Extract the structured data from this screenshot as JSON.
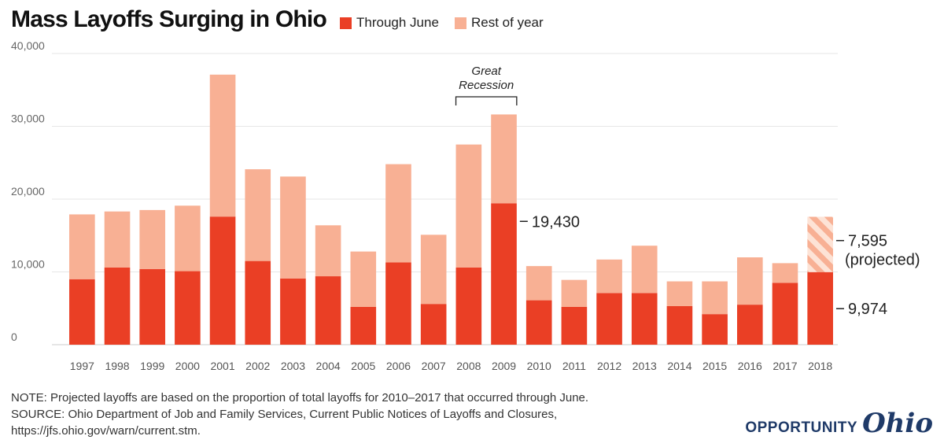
{
  "chart_data": {
    "type": "bar",
    "stacked": true,
    "title": "Mass Layoffs Surging in Ohio",
    "categories": [
      "1997",
      "1998",
      "1999",
      "2000",
      "2001",
      "2002",
      "2003",
      "2004",
      "2005",
      "2006",
      "2007",
      "2008",
      "2009",
      "2010",
      "2011",
      "2012",
      "2013",
      "2014",
      "2015",
      "2016",
      "2017",
      "2018"
    ],
    "series": [
      {
        "name": "Through June",
        "color": "#ea3f25",
        "values": [
          9000,
          10600,
          10400,
          10100,
          17600,
          11500,
          9100,
          9400,
          5200,
          11300,
          5600,
          10600,
          19430,
          6100,
          5200,
          7100,
          7100,
          5300,
          4200,
          5500,
          8500,
          9974
        ]
      },
      {
        "name": "Rest of year",
        "color": "#f8b094",
        "values": [
          8900,
          7700,
          8100,
          9000,
          19500,
          12600,
          14000,
          7000,
          7600,
          13500,
          9500,
          16900,
          12200,
          4700,
          3700,
          4600,
          6500,
          3400,
          4500,
          6500,
          2700,
          7595
        ]
      }
    ],
    "projected": {
      "category": "2018",
      "series": "Rest of year",
      "pattern": "diagonal-stripes"
    },
    "ylim": [
      0,
      40000
    ],
    "yticks": [
      0,
      10000,
      20000,
      30000,
      40000
    ],
    "ytick_labels": [
      "0",
      "10,000",
      "20,000",
      "30,000",
      "40,000"
    ],
    "grid": true,
    "legend_position": "top",
    "annotations": {
      "recession_label_line1": "Great",
      "recession_label_line2": "Recession",
      "recession_span": [
        "2008",
        "2009"
      ],
      "value_2009": "19,430",
      "value_2018_projected": "7,595",
      "value_2018_projected_note": "(projected)",
      "value_2018_june": "9,974"
    }
  },
  "notes": {
    "note": "NOTE: Projected layoffs are based on the proportion of total layoffs for 2010–2017 that occurred through June.",
    "source_line1": "SOURCE: Ohio Department of Job and Family Services, Current Public Notices of Layoffs and Closures,",
    "source_line2": "https://jfs.ohio.gov/warn/current.stm."
  },
  "branding": {
    "word": "OPPORTUNITY",
    "script": "Ohio",
    "color": "#1f3a68"
  }
}
